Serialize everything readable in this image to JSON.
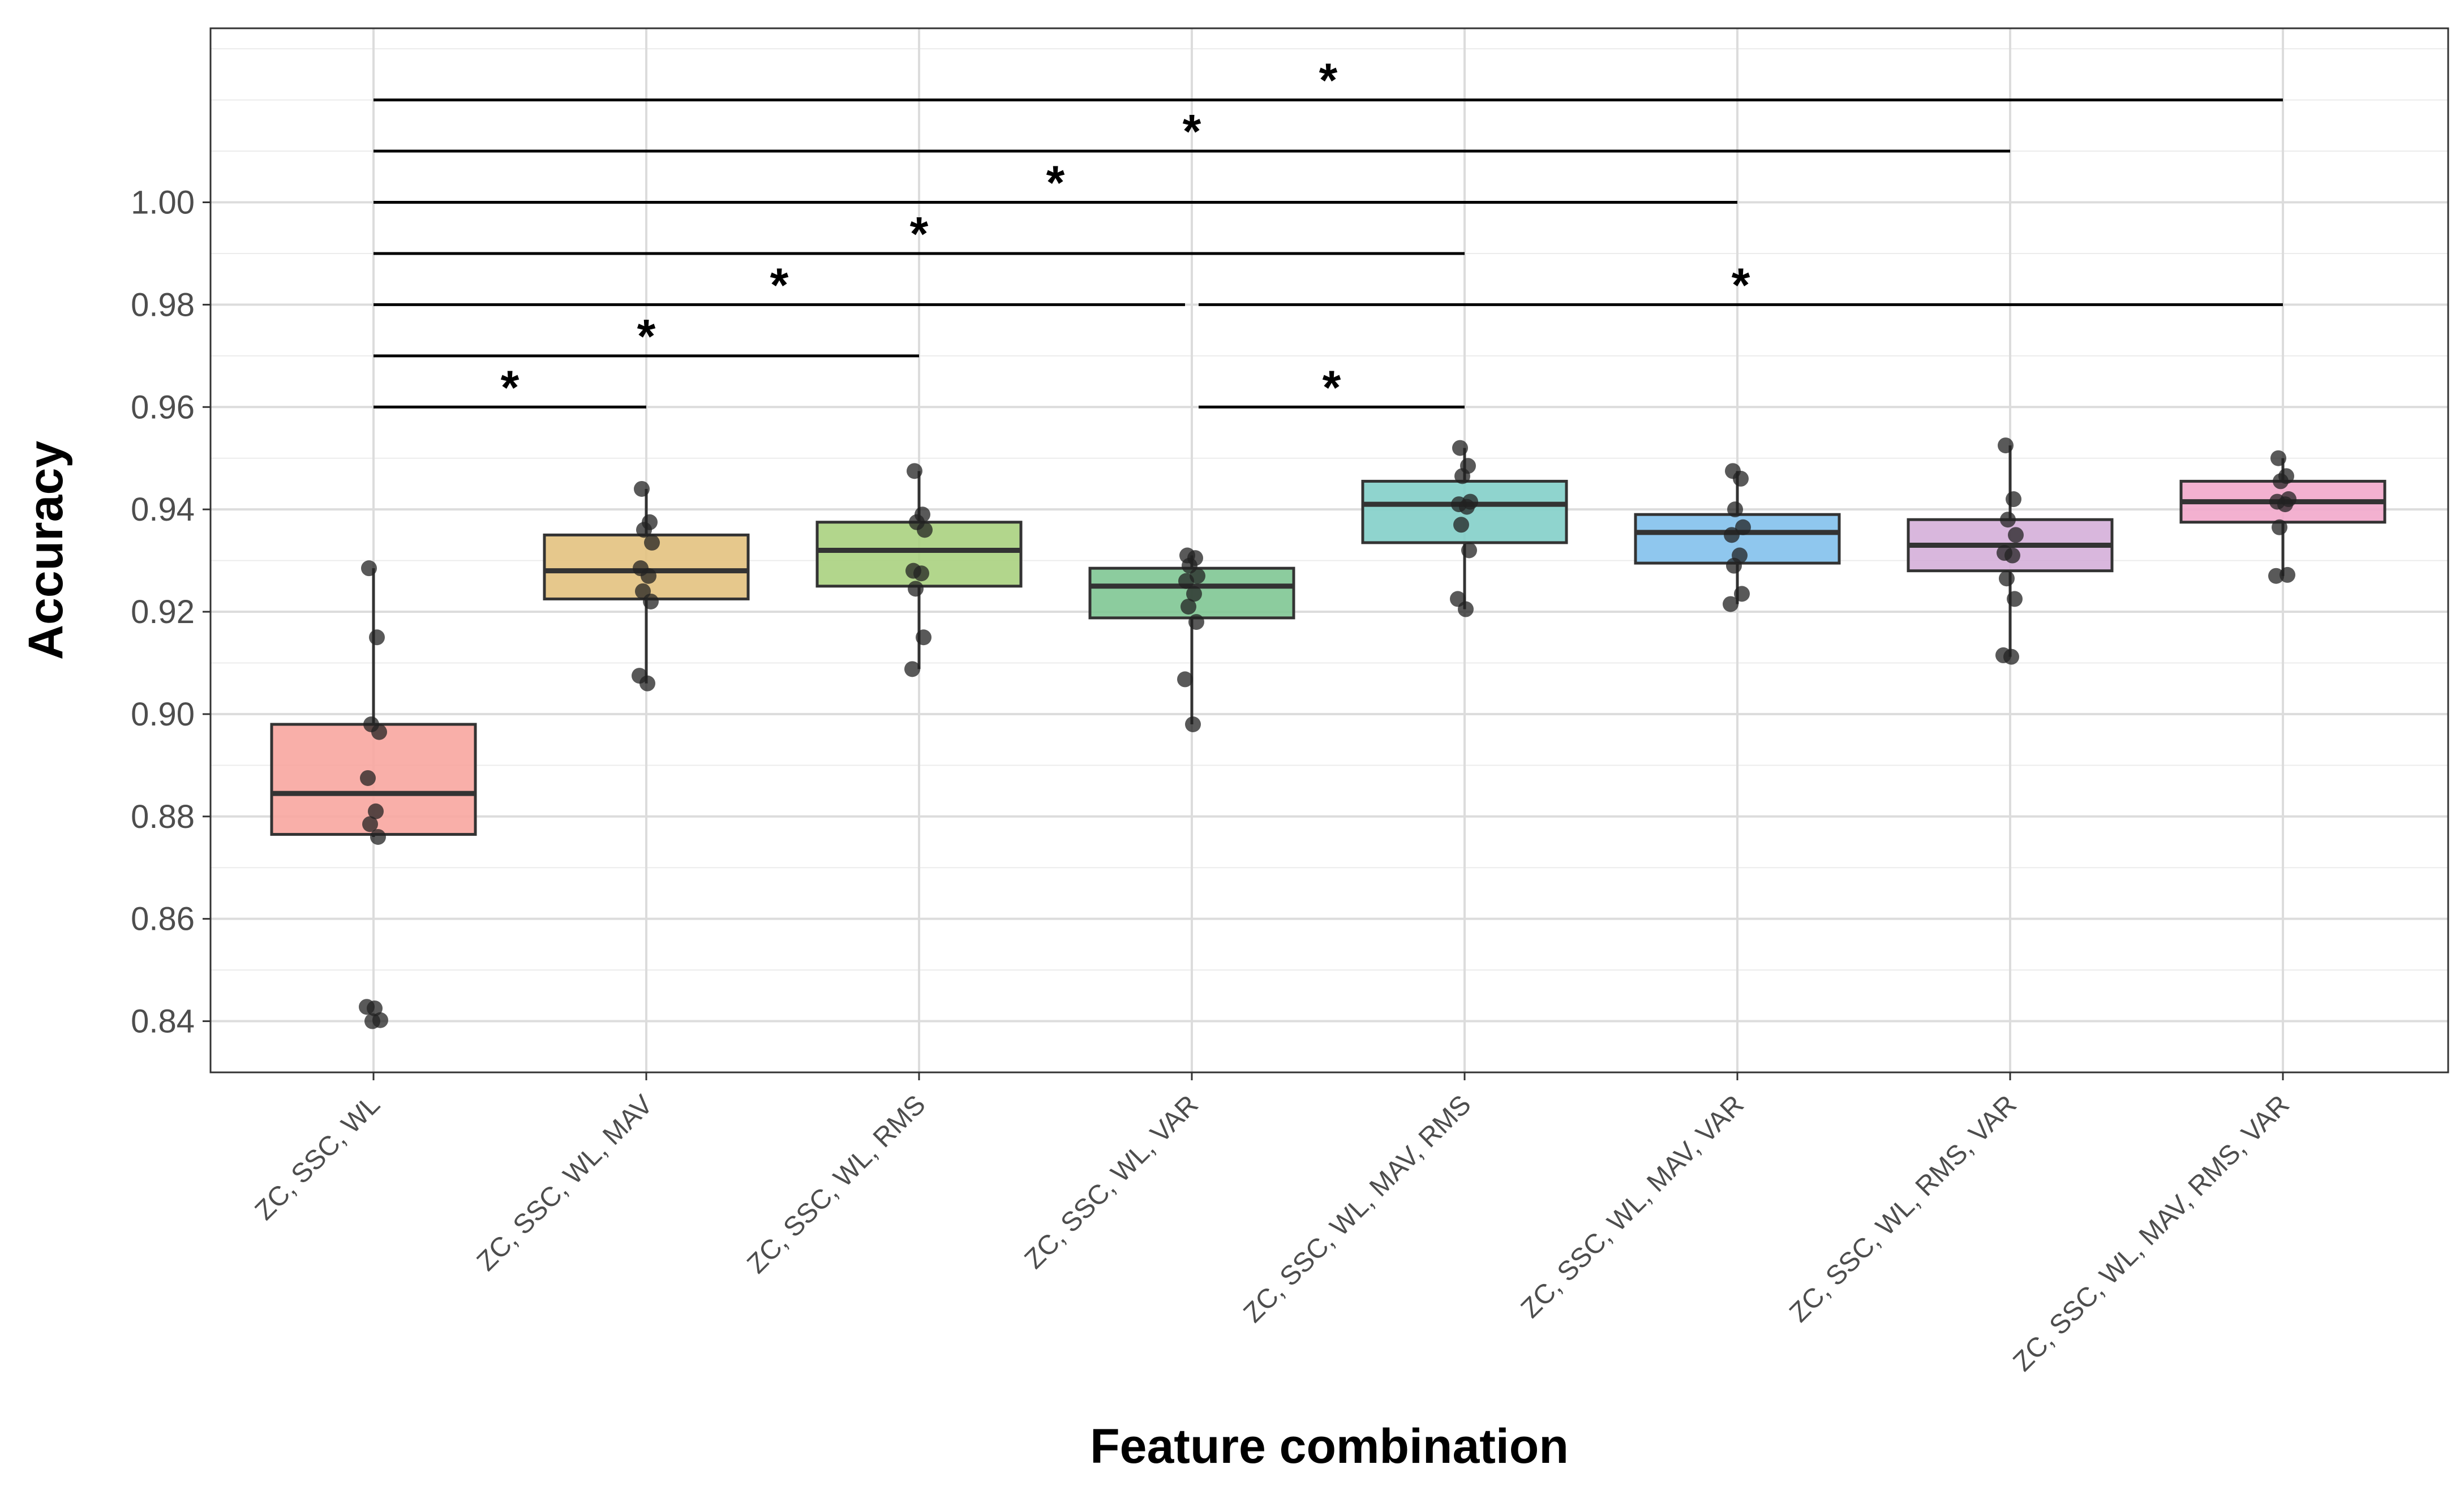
{
  "chart_data": {
    "type": "boxplot",
    "xlabel": "Feature combination",
    "ylabel": "Accuracy",
    "ylim": [
      0.83,
      1.034
    ],
    "yticks": [
      0.84,
      0.86,
      0.88,
      0.9,
      0.92,
      0.94,
      0.96,
      0.98,
      1.0
    ],
    "ytick_labels": [
      "0.84",
      "0.86",
      "0.88",
      "0.90",
      "0.92",
      "0.94",
      "0.96",
      "0.98",
      "1.00"
    ],
    "grid": true,
    "categories": [
      "ZC, SSC, WL",
      "ZC, SSC, WL, MAV",
      "ZC, SSC, WL, RMS",
      "ZC, SSC, WL, VAR",
      "ZC, SSC, WL, MAV, RMS",
      "ZC, SSC, WL, MAV, VAR",
      "ZC, SSC, WL, RMS, VAR",
      "ZC, SSC, WL, MAV, RMS, VAR"
    ],
    "boxes": [
      {
        "color": "#F8A6A0",
        "whisker_low": 0.876,
        "q1": 0.8765,
        "median": 0.8845,
        "q3": 0.898,
        "whisker_high": 0.9285,
        "points": [
          0.9285,
          0.915,
          0.898,
          0.8965,
          0.8875,
          0.881,
          0.8785,
          0.876,
          0.8428,
          0.8425,
          0.8402,
          0.84
        ]
      },
      {
        "color": "#E3C27F",
        "whisker_low": 0.906,
        "q1": 0.9225,
        "median": 0.928,
        "q3": 0.935,
        "whisker_high": 0.944,
        "points": [
          0.944,
          0.9375,
          0.936,
          0.9335,
          0.9285,
          0.927,
          0.924,
          0.922,
          0.9075,
          0.906
        ]
      },
      {
        "color": "#AAD17F",
        "whisker_low": 0.9088,
        "q1": 0.925,
        "median": 0.932,
        "q3": 0.9375,
        "whisker_high": 0.9475,
        "points": [
          0.9475,
          0.939,
          0.9375,
          0.936,
          0.928,
          0.9275,
          0.9245,
          0.915,
          0.9088
        ]
      },
      {
        "color": "#7FC794",
        "whisker_low": 0.898,
        "q1": 0.9188,
        "median": 0.925,
        "q3": 0.9285,
        "whisker_high": 0.931,
        "points": [
          0.931,
          0.9305,
          0.929,
          0.927,
          0.926,
          0.9235,
          0.921,
          0.918,
          0.9068,
          0.898
        ]
      },
      {
        "color": "#83CFC9",
        "whisker_low": 0.9205,
        "q1": 0.9335,
        "median": 0.941,
        "q3": 0.9455,
        "whisker_high": 0.952,
        "points": [
          0.952,
          0.9485,
          0.9465,
          0.9415,
          0.941,
          0.9405,
          0.937,
          0.932,
          0.9225,
          0.9205
        ]
      },
      {
        "color": "#83C1EC",
        "whisker_low": 0.9215,
        "q1": 0.9295,
        "median": 0.9355,
        "q3": 0.939,
        "whisker_high": 0.9475,
        "points": [
          0.9475,
          0.946,
          0.94,
          0.9365,
          0.935,
          0.931,
          0.929,
          0.9235,
          0.9215
        ]
      },
      {
        "color": "#D5AFD9",
        "whisker_low": 0.9112,
        "q1": 0.928,
        "median": 0.933,
        "q3": 0.938,
        "whisker_high": 0.9525,
        "points": [
          0.9525,
          0.942,
          0.938,
          0.935,
          0.9315,
          0.931,
          0.9265,
          0.9225,
          0.9115,
          0.9112
        ]
      },
      {
        "color": "#F2A8CB",
        "whisker_low": 0.927,
        "q1": 0.9375,
        "median": 0.9415,
        "q3": 0.9455,
        "whisker_high": 0.95,
        "points": [
          0.95,
          0.9465,
          0.9455,
          0.942,
          0.9415,
          0.941,
          0.9365,
          0.9272,
          0.927
        ]
      }
    ],
    "significance": [
      {
        "from": 0,
        "to": 1,
        "y": 0.96,
        "label": "*"
      },
      {
        "from": 0,
        "to": 2,
        "y": 0.97,
        "label": "*"
      },
      {
        "from": 0,
        "to": 3,
        "y": 0.98,
        "label": "*"
      },
      {
        "from": 3,
        "to": 7,
        "y": 0.98,
        "label": "*"
      },
      {
        "from": 0,
        "to": 4,
        "y": 0.99,
        "label": "*"
      },
      {
        "from": 0,
        "to": 5,
        "y": 1.0,
        "label": "*"
      },
      {
        "from": 0,
        "to": 6,
        "y": 1.01,
        "label": "*"
      },
      {
        "from": 0,
        "to": 7,
        "y": 1.02,
        "label": "*"
      },
      {
        "from": 3,
        "to": 4,
        "y": 0.96,
        "label": "*"
      }
    ]
  }
}
